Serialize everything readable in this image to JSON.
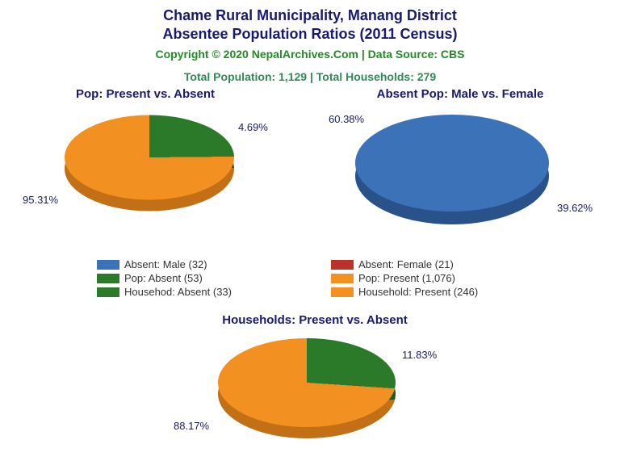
{
  "title_line1": "Chame Rural Municipality, Manang District",
  "title_line2": "Absentee Population Ratios (2011 Census)",
  "copyright": "Copyright © 2020 NepalArchives.Com | Data Source: CBS",
  "totals": "Total Population: 1,129 | Total Households: 279",
  "colors": {
    "blue": "#3b72b8",
    "red": "#b8342a",
    "green": "#2a7a2a",
    "orange": "#f29122",
    "blue_dark": "#2a528a",
    "red_dark": "#8a261f",
    "green_dark": "#1f5a1f",
    "orange_dark": "#c26f15",
    "title": "#191970",
    "green_text": "#228b22"
  },
  "chart1": {
    "title": "Pop: Present vs. Absent",
    "slices": [
      {
        "label": "95.31%",
        "value": 95.31,
        "color_key": "orange"
      },
      {
        "label": "4.69%",
        "value": 4.69,
        "color_key": "green"
      }
    ]
  },
  "chart2": {
    "title": "Absent Pop: Male vs. Female",
    "slices": [
      {
        "label": "60.38%",
        "value": 60.38,
        "color_key": "blue"
      },
      {
        "label": "39.62%",
        "value": 39.62,
        "color_key": "red"
      }
    ]
  },
  "chart3": {
    "title": "Households: Present vs. Absent",
    "slices": [
      {
        "label": "88.17%",
        "value": 88.17,
        "color_key": "orange"
      },
      {
        "label": "11.83%",
        "value": 11.83,
        "color_key": "green"
      }
    ]
  },
  "legend": [
    {
      "color_key": "blue",
      "text": "Absent: Male (32)"
    },
    {
      "color_key": "red",
      "text": "Absent: Female (21)"
    },
    {
      "color_key": "green",
      "text": "Pop: Absent (53)"
    },
    {
      "color_key": "orange",
      "text": "Pop: Present (1,076)"
    },
    {
      "color_key": "green",
      "text": "Househod: Absent (33)"
    },
    {
      "color_key": "orange",
      "text": "Household: Present (246)"
    }
  ]
}
